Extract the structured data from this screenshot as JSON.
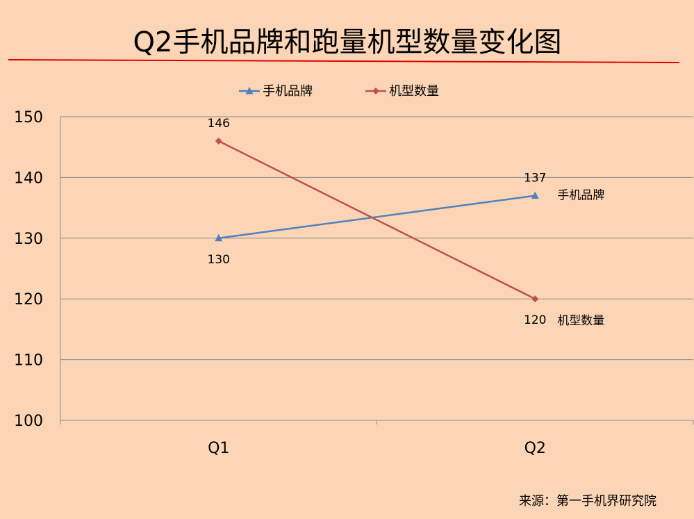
{
  "chart_data": {
    "type": "line",
    "title": "Q2手机品牌和跑量机型数量变化图",
    "categories": [
      "Q1",
      "Q2"
    ],
    "series": [
      {
        "name": "手机品牌",
        "values": [
          130,
          137
        ],
        "color": "#4f81bd",
        "marker": "triangle"
      },
      {
        "name": "机型数量",
        "values": [
          146,
          120
        ],
        "color": "#c0504d",
        "marker": "diamond"
      }
    ],
    "ylim": [
      100,
      150
    ],
    "yticks": [
      100,
      110,
      120,
      130,
      140,
      150
    ],
    "grid": true,
    "legend": "top",
    "source": "来源：第一手机界研究院"
  },
  "colors": {
    "background": "#fbd5b5",
    "title_underline": "#e00000"
  }
}
